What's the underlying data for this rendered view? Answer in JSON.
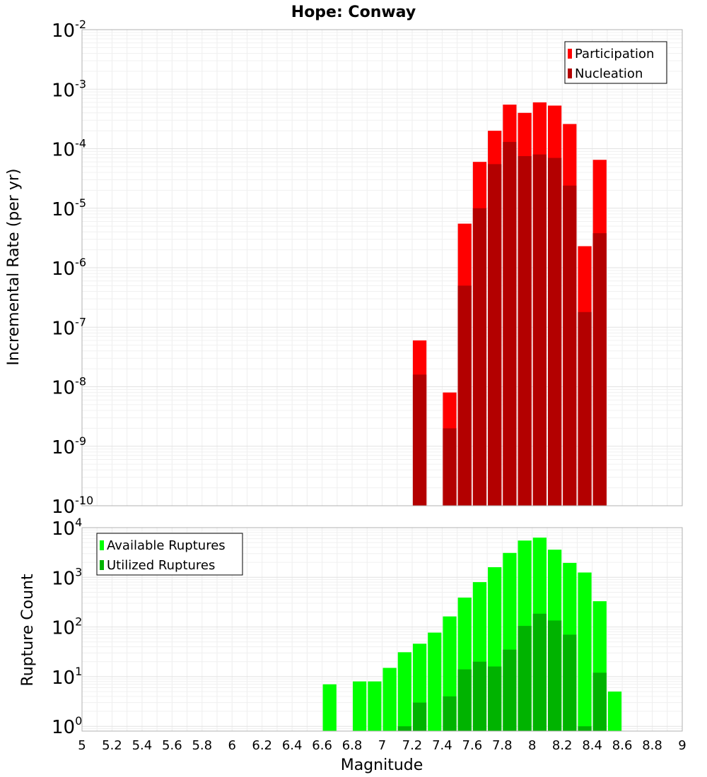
{
  "chart_data": [
    {
      "type": "bar",
      "title": "Hope: Conway",
      "ylabel": "Incremental Rate (per yr)",
      "xlabel": "",
      "xlim": [
        5,
        9
      ],
      "ylim": [
        1e-10,
        0.01
      ],
      "yscale": "log",
      "bar_width": 0.1,
      "grid": true,
      "legend_position": "top-right",
      "series": [
        {
          "name": "Participation",
          "color": "#ff0000",
          "x": [
            7.25,
            7.45,
            7.55,
            7.65,
            7.75,
            7.85,
            7.95,
            8.05,
            8.15,
            8.25,
            8.35,
            8.45
          ],
          "values": [
            6e-08,
            8e-09,
            5.5e-06,
            6e-05,
            0.0002,
            0.00055,
            0.0004,
            0.0006,
            0.00053,
            0.00026,
            2.3e-06,
            6.5e-05
          ]
        },
        {
          "name": "Nucleation",
          "color": "#b30000",
          "x": [
            7.25,
            7.45,
            7.55,
            7.65,
            7.75,
            7.85,
            7.95,
            8.05,
            8.15,
            8.25,
            8.35,
            8.45
          ],
          "values": [
            1.6e-08,
            2e-09,
            5e-07,
            1e-05,
            5.5e-05,
            0.00013,
            7.5e-05,
            8e-05,
            7e-05,
            2.4e-05,
            1.8e-07,
            3.8e-06
          ]
        }
      ]
    },
    {
      "type": "bar",
      "title": "",
      "ylabel": "Rupture Count",
      "xlabel": "Magnitude",
      "xlim": [
        5,
        9
      ],
      "ylim": [
        0.8,
        10000.0
      ],
      "yscale": "log",
      "bar_width": 0.1,
      "grid": true,
      "legend_position": "top-left",
      "x_ticks": [
        "5",
        "5.2",
        "5.4",
        "5.6",
        "5.8",
        "6",
        "6.2",
        "6.4",
        "6.6",
        "6.8",
        "7",
        "7.2",
        "7.4",
        "7.6",
        "7.8",
        "8",
        "8.2",
        "8.4",
        "8.6",
        "8.8",
        "9"
      ],
      "series": [
        {
          "name": "Available Ruptures",
          "color": "#00ff00",
          "x": [
            6.65,
            6.85,
            6.95,
            7.05,
            7.15,
            7.25,
            7.35,
            7.45,
            7.55,
            7.65,
            7.75,
            7.85,
            7.95,
            8.05,
            8.15,
            8.25,
            8.35,
            8.45,
            8.55
          ],
          "values": [
            7,
            8,
            8,
            15,
            31,
            46,
            77,
            163,
            390,
            800,
            1600,
            3100,
            5500,
            6300,
            3600,
            1950,
            1250,
            330,
            5
          ]
        },
        {
          "name": "Utilized Ruptures",
          "color": "#00b300",
          "x": [
            7.15,
            7.25,
            7.45,
            7.55,
            7.65,
            7.75,
            7.85,
            7.95,
            8.05,
            8.15,
            8.25,
            8.35,
            8.45
          ],
          "values": [
            1,
            3,
            4,
            14,
            20,
            16,
            35,
            105,
            185,
            135,
            70,
            1,
            12
          ]
        }
      ]
    }
  ]
}
